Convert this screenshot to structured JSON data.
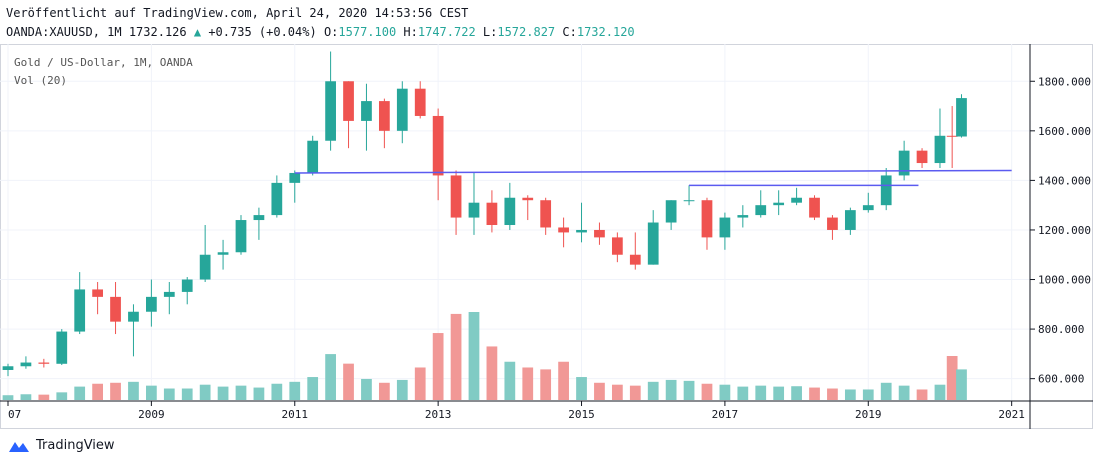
{
  "header": {
    "published": "Veröffentlicht auf TradingView.com, April 24, 2020 14:53:56 CEST",
    "symbol": "OANDA:XAUUSD, 1M 1732.126",
    "change": "+0.735 (+0.04%)",
    "o_label": "O:",
    "o_value": "1577.100",
    "h_label": "H:",
    "h_value": "1747.722",
    "l_label": "L:",
    "l_value": "1572.827",
    "c_label": "C:",
    "c_value": "1732.120"
  },
  "legend": {
    "series": "Gold  / US-Dollar, 1M, OANDA",
    "volume": "Vol (20)"
  },
  "brand": "TradingView",
  "colors": {
    "up": "#26a69a",
    "down": "#ef5350",
    "vol_up": "#80cbc4",
    "vol_down": "#f19896",
    "trendline": "#5b5bf0",
    "grid": "#f0f3fa",
    "axis": "#131722"
  },
  "chart_data": {
    "type": "candlestick",
    "x_ticks": [
      "07",
      "2009",
      "2011",
      "2013",
      "2015",
      "2017",
      "2019",
      "2021"
    ],
    "y_ticks": [
      "1800.000",
      "1600.000",
      "1400.000",
      "1200.000",
      "1000.000",
      "800.000",
      "600.000"
    ],
    "ylim": [
      530,
      1910
    ],
    "x_range": [
      2007.0,
      2021.2
    ],
    "series": [
      {
        "t": 2007.0,
        "o": 635,
        "h": 660,
        "l": 610,
        "c": 650,
        "v": 25
      },
      {
        "t": 2007.25,
        "o": 650,
        "h": 690,
        "l": 640,
        "c": 665,
        "v": 30
      },
      {
        "t": 2007.5,
        "o": 665,
        "h": 680,
        "l": 645,
        "c": 660,
        "v": 28
      },
      {
        "t": 2007.75,
        "o": 660,
        "h": 800,
        "l": 655,
        "c": 790,
        "v": 40
      },
      {
        "t": 2008.0,
        "o": 790,
        "h": 1030,
        "l": 780,
        "c": 960,
        "v": 70
      },
      {
        "t": 2008.25,
        "o": 960,
        "h": 990,
        "l": 860,
        "c": 930,
        "v": 85
      },
      {
        "t": 2008.5,
        "o": 930,
        "h": 990,
        "l": 780,
        "c": 830,
        "v": 90
      },
      {
        "t": 2008.75,
        "o": 830,
        "h": 900,
        "l": 690,
        "c": 870,
        "v": 95
      },
      {
        "t": 2009.0,
        "o": 870,
        "h": 1000,
        "l": 810,
        "c": 930,
        "v": 75
      },
      {
        "t": 2009.25,
        "o": 930,
        "h": 990,
        "l": 860,
        "c": 950,
        "v": 60
      },
      {
        "t": 2009.5,
        "o": 950,
        "h": 1010,
        "l": 900,
        "c": 1000,
        "v": 60
      },
      {
        "t": 2009.75,
        "o": 1000,
        "h": 1220,
        "l": 990,
        "c": 1100,
        "v": 80
      },
      {
        "t": 2010.0,
        "o": 1100,
        "h": 1160,
        "l": 1040,
        "c": 1110,
        "v": 70
      },
      {
        "t": 2010.25,
        "o": 1110,
        "h": 1260,
        "l": 1100,
        "c": 1240,
        "v": 75
      },
      {
        "t": 2010.5,
        "o": 1240,
        "h": 1290,
        "l": 1160,
        "c": 1260,
        "v": 65
      },
      {
        "t": 2010.75,
        "o": 1260,
        "h": 1420,
        "l": 1250,
        "c": 1390,
        "v": 85
      },
      {
        "t": 2011.0,
        "o": 1390,
        "h": 1440,
        "l": 1310,
        "c": 1430,
        "v": 95
      },
      {
        "t": 2011.25,
        "o": 1430,
        "h": 1580,
        "l": 1420,
        "c": 1560,
        "v": 120
      },
      {
        "t": 2011.5,
        "o": 1560,
        "h": 1920,
        "l": 1520,
        "c": 1800,
        "v": 240
      },
      {
        "t": 2011.75,
        "o": 1800,
        "h": 1800,
        "l": 1530,
        "c": 1640,
        "v": 190
      },
      {
        "t": 2012.0,
        "o": 1640,
        "h": 1790,
        "l": 1520,
        "c": 1720,
        "v": 110
      },
      {
        "t": 2012.25,
        "o": 1720,
        "h": 1730,
        "l": 1530,
        "c": 1600,
        "v": 90
      },
      {
        "t": 2012.5,
        "o": 1600,
        "h": 1800,
        "l": 1550,
        "c": 1770,
        "v": 105
      },
      {
        "t": 2012.75,
        "o": 1770,
        "h": 1800,
        "l": 1650,
        "c": 1660,
        "v": 170
      },
      {
        "t": 2013.0,
        "o": 1660,
        "h": 1690,
        "l": 1320,
        "c": 1420,
        "v": 350
      },
      {
        "t": 2013.25,
        "o": 1420,
        "h": 1440,
        "l": 1180,
        "c": 1250,
        "v": 450
      },
      {
        "t": 2013.5,
        "o": 1250,
        "h": 1430,
        "l": 1180,
        "c": 1310,
        "v": 460
      },
      {
        "t": 2013.75,
        "o": 1310,
        "h": 1360,
        "l": 1190,
        "c": 1220,
        "v": 280
      },
      {
        "t": 2014.0,
        "o": 1220,
        "h": 1390,
        "l": 1200,
        "c": 1330,
        "v": 200
      },
      {
        "t": 2014.25,
        "o": 1330,
        "h": 1340,
        "l": 1240,
        "c": 1320,
        "v": 170
      },
      {
        "t": 2014.5,
        "o": 1320,
        "h": 1330,
        "l": 1180,
        "c": 1210,
        "v": 160
      },
      {
        "t": 2014.75,
        "o": 1210,
        "h": 1250,
        "l": 1130,
        "c": 1190,
        "v": 200
      },
      {
        "t": 2015.0,
        "o": 1190,
        "h": 1310,
        "l": 1150,
        "c": 1200,
        "v": 120
      },
      {
        "t": 2015.25,
        "o": 1200,
        "h": 1230,
        "l": 1140,
        "c": 1170,
        "v": 90
      },
      {
        "t": 2015.5,
        "o": 1170,
        "h": 1190,
        "l": 1070,
        "c": 1100,
        "v": 80
      },
      {
        "t": 2015.75,
        "o": 1100,
        "h": 1190,
        "l": 1040,
        "c": 1060,
        "v": 75
      },
      {
        "t": 2016.0,
        "o": 1060,
        "h": 1280,
        "l": 1060,
        "c": 1230,
        "v": 95
      },
      {
        "t": 2016.25,
        "o": 1230,
        "h": 1320,
        "l": 1200,
        "c": 1320,
        "v": 105
      },
      {
        "t": 2016.5,
        "o": 1320,
        "h": 1380,
        "l": 1300,
        "c": 1320,
        "v": 100
      },
      {
        "t": 2016.75,
        "o": 1320,
        "h": 1330,
        "l": 1120,
        "c": 1170,
        "v": 85
      },
      {
        "t": 2017.0,
        "o": 1170,
        "h": 1270,
        "l": 1120,
        "c": 1250,
        "v": 80
      },
      {
        "t": 2017.25,
        "o": 1250,
        "h": 1300,
        "l": 1210,
        "c": 1260,
        "v": 70
      },
      {
        "t": 2017.5,
        "o": 1260,
        "h": 1360,
        "l": 1250,
        "c": 1300,
        "v": 75
      },
      {
        "t": 2017.75,
        "o": 1300,
        "h": 1360,
        "l": 1260,
        "c": 1310,
        "v": 70
      },
      {
        "t": 2018.0,
        "o": 1310,
        "h": 1370,
        "l": 1300,
        "c": 1330,
        "v": 72
      },
      {
        "t": 2018.25,
        "o": 1330,
        "h": 1340,
        "l": 1240,
        "c": 1250,
        "v": 65
      },
      {
        "t": 2018.5,
        "o": 1250,
        "h": 1260,
        "l": 1160,
        "c": 1200,
        "v": 60
      },
      {
        "t": 2018.75,
        "o": 1200,
        "h": 1290,
        "l": 1180,
        "c": 1280,
        "v": 55
      },
      {
        "t": 2019.0,
        "o": 1280,
        "h": 1350,
        "l": 1270,
        "c": 1300,
        "v": 55
      },
      {
        "t": 2019.25,
        "o": 1300,
        "h": 1450,
        "l": 1280,
        "c": 1420,
        "v": 90
      },
      {
        "t": 2019.5,
        "o": 1420,
        "h": 1560,
        "l": 1400,
        "c": 1520,
        "v": 75
      },
      {
        "t": 2019.75,
        "o": 1520,
        "h": 1530,
        "l": 1450,
        "c": 1470,
        "v": 55
      },
      {
        "t": 2020.0,
        "o": 1470,
        "h": 1690,
        "l": 1450,
        "c": 1580,
        "v": 80
      },
      {
        "t": 2020.17,
        "o": 1580,
        "h": 1700,
        "l": 1450,
        "c": 1577,
        "v": 230
      },
      {
        "t": 2020.3,
        "o": 1577.1,
        "h": 1747.7,
        "l": 1572.8,
        "c": 1732.1,
        "v": 160
      }
    ],
    "trendlines": [
      {
        "x1": 2011.0,
        "y1": 1430,
        "x2": 2021.0,
        "y2": 1440
      },
      {
        "x1": 2016.5,
        "y1": 1380,
        "x2": 2019.7,
        "y2": 1380
      }
    ]
  }
}
